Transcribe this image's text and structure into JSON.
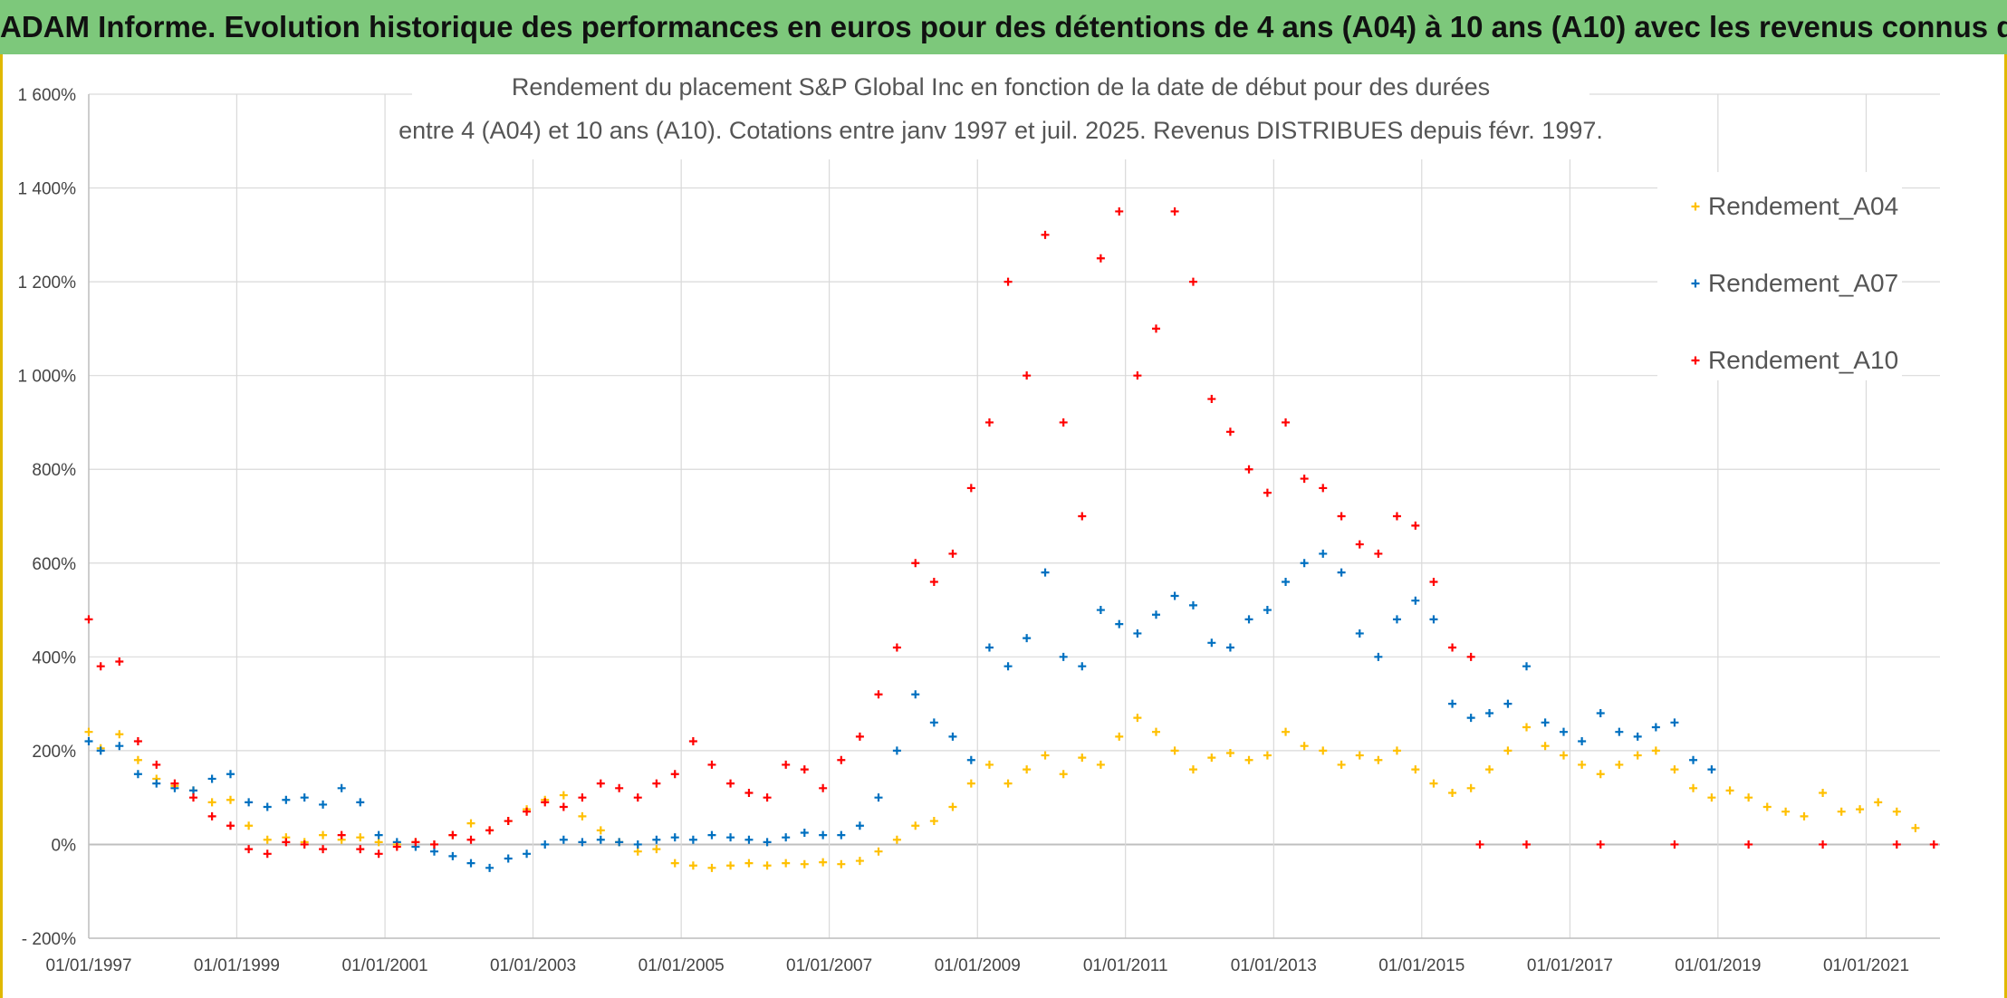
{
  "banner": {
    "title": "ADAM Informe. Evolution historique des performances en euros pour des détentions de 4 ans (A04) à 10 ans (A10) avec les revenus connus distribués"
  },
  "colors": {
    "A04": "#ffc000",
    "A07": "#0070c0",
    "A10": "#ff0000",
    "banner": "#7dc87b",
    "grid": "#d9d9d9"
  },
  "chart_data": {
    "type": "scatter",
    "title": [
      "Rendement du placement S&P Global Inc en fonction de la date de début pour des durées",
      "entre 4 (A04) et 10 ans (A10). Cotations entre janv 1997 et juil. 2025. Revenus DISTRIBUES depuis févr. 1997."
    ],
    "xlabel": "",
    "ylabel": "",
    "x_range": [
      "1997-01-01",
      "2021-12-31"
    ],
    "ylim": [
      -200,
      1600
    ],
    "x_ticks": [
      "01/01/1997",
      "01/01/1999",
      "01/01/2001",
      "01/01/2003",
      "01/01/2005",
      "01/01/2007",
      "01/01/2009",
      "01/01/2011",
      "01/01/2013",
      "01/01/2015",
      "01/01/2017",
      "01/01/2019",
      "01/01/2021"
    ],
    "y_ticks": [
      "- 200%",
      "0%",
      "200%",
      "400%",
      "600%",
      "800%",
      "1 000%",
      "1 200%",
      "1 400%",
      "1 600%"
    ],
    "grid": true,
    "legend_position": "top-right",
    "series": [
      {
        "name": "Rendement_A04",
        "color": "#ffc000",
        "points": [
          [
            "1997-01-01",
            240
          ],
          [
            "1997-03-01",
            205
          ],
          [
            "1997-06-01",
            235
          ],
          [
            "1997-09-01",
            180
          ],
          [
            "1997-12-01",
            140
          ],
          [
            "1998-03-01",
            125
          ],
          [
            "1998-06-01",
            115
          ],
          [
            "1998-09-01",
            90
          ],
          [
            "1998-12-01",
            95
          ],
          [
            "1999-03-01",
            40
          ],
          [
            "1999-06-01",
            10
          ],
          [
            "1999-09-01",
            15
          ],
          [
            "1999-12-01",
            5
          ],
          [
            "2000-03-01",
            20
          ],
          [
            "2000-06-01",
            10
          ],
          [
            "2000-09-01",
            15
          ],
          [
            "2000-12-01",
            5
          ],
          [
            "2001-03-01",
            0
          ],
          [
            "2001-06-01",
            5
          ],
          [
            "2001-09-01",
            0
          ],
          [
            "2001-12-01",
            20
          ],
          [
            "2002-03-01",
            45
          ],
          [
            "2002-06-01",
            30
          ],
          [
            "2002-09-01",
            50
          ],
          [
            "2002-12-01",
            75
          ],
          [
            "2003-03-01",
            95
          ],
          [
            "2003-06-01",
            105
          ],
          [
            "2003-09-01",
            60
          ],
          [
            "2003-12-01",
            30
          ],
          [
            "2004-03-01",
            5
          ],
          [
            "2004-06-01",
            -15
          ],
          [
            "2004-09-01",
            -10
          ],
          [
            "2004-12-01",
            -40
          ],
          [
            "2005-03-01",
            -45
          ],
          [
            "2005-06-01",
            -50
          ],
          [
            "2005-09-01",
            -45
          ],
          [
            "2005-12-01",
            -40
          ],
          [
            "2006-03-01",
            -45
          ],
          [
            "2006-06-01",
            -40
          ],
          [
            "2006-09-01",
            -42
          ],
          [
            "2006-12-01",
            -38
          ],
          [
            "2007-03-01",
            -42
          ],
          [
            "2007-06-01",
            -35
          ],
          [
            "2007-09-01",
            -15
          ],
          [
            "2007-12-01",
            10
          ],
          [
            "2008-03-01",
            40
          ],
          [
            "2008-06-01",
            50
          ],
          [
            "2008-09-01",
            80
          ],
          [
            "2008-12-01",
            130
          ],
          [
            "2009-03-01",
            170
          ],
          [
            "2009-06-01",
            130
          ],
          [
            "2009-09-01",
            160
          ],
          [
            "2009-12-01",
            190
          ],
          [
            "2010-03-01",
            150
          ],
          [
            "2010-06-01",
            185
          ],
          [
            "2010-09-01",
            170
          ],
          [
            "2010-12-01",
            230
          ],
          [
            "2011-03-01",
            270
          ],
          [
            "2011-06-01",
            240
          ],
          [
            "2011-09-01",
            200
          ],
          [
            "2011-12-01",
            160
          ],
          [
            "2012-03-01",
            185
          ],
          [
            "2012-06-01",
            195
          ],
          [
            "2012-09-01",
            180
          ],
          [
            "2012-12-01",
            190
          ],
          [
            "2013-03-01",
            240
          ],
          [
            "2013-06-01",
            210
          ],
          [
            "2013-09-01",
            200
          ],
          [
            "2013-12-01",
            170
          ],
          [
            "2014-03-01",
            190
          ],
          [
            "2014-06-01",
            180
          ],
          [
            "2014-09-01",
            200
          ],
          [
            "2014-12-01",
            160
          ],
          [
            "2015-03-01",
            130
          ],
          [
            "2015-06-01",
            110
          ],
          [
            "2015-09-01",
            120
          ],
          [
            "2015-12-01",
            160
          ],
          [
            "2016-03-01",
            200
          ],
          [
            "2016-06-01",
            250
          ],
          [
            "2016-09-01",
            210
          ],
          [
            "2016-12-01",
            190
          ],
          [
            "2017-03-01",
            170
          ],
          [
            "2017-06-01",
            150
          ],
          [
            "2017-09-01",
            170
          ],
          [
            "2017-12-01",
            190
          ],
          [
            "2018-03-01",
            200
          ],
          [
            "2018-06-01",
            160
          ],
          [
            "2018-09-01",
            120
          ],
          [
            "2018-12-01",
            100
          ],
          [
            "2019-03-01",
            115
          ],
          [
            "2019-06-01",
            100
          ],
          [
            "2019-09-01",
            80
          ],
          [
            "2019-12-01",
            70
          ],
          [
            "2020-03-01",
            60
          ],
          [
            "2020-06-01",
            110
          ],
          [
            "2020-09-01",
            70
          ],
          [
            "2020-12-01",
            75
          ],
          [
            "2021-03-01",
            90
          ],
          [
            "2021-06-01",
            70
          ],
          [
            "2021-09-01",
            35
          ]
        ]
      },
      {
        "name": "Rendement_A07",
        "color": "#0070c0",
        "points": [
          [
            "1997-01-01",
            220
          ],
          [
            "1997-03-01",
            200
          ],
          [
            "1997-06-01",
            210
          ],
          [
            "1997-09-01",
            150
          ],
          [
            "1997-12-01",
            130
          ],
          [
            "1998-03-01",
            120
          ],
          [
            "1998-06-01",
            115
          ],
          [
            "1998-09-01",
            140
          ],
          [
            "1998-12-01",
            150
          ],
          [
            "1999-03-01",
            90
          ],
          [
            "1999-06-01",
            80
          ],
          [
            "1999-09-01",
            95
          ],
          [
            "1999-12-01",
            100
          ],
          [
            "2000-03-01",
            85
          ],
          [
            "2000-06-01",
            120
          ],
          [
            "2000-09-01",
            90
          ],
          [
            "2000-12-01",
            20
          ],
          [
            "2001-03-01",
            5
          ],
          [
            "2001-06-01",
            -5
          ],
          [
            "2001-09-01",
            -15
          ],
          [
            "2001-12-01",
            -25
          ],
          [
            "2002-03-01",
            -40
          ],
          [
            "2002-06-01",
            -50
          ],
          [
            "2002-09-01",
            -30
          ],
          [
            "2002-12-01",
            -20
          ],
          [
            "2003-03-01",
            0
          ],
          [
            "2003-06-01",
            10
          ],
          [
            "2003-09-01",
            5
          ],
          [
            "2003-12-01",
            10
          ],
          [
            "2004-03-01",
            5
          ],
          [
            "2004-06-01",
            0
          ],
          [
            "2004-09-01",
            10
          ],
          [
            "2004-12-01",
            15
          ],
          [
            "2005-03-01",
            10
          ],
          [
            "2005-06-01",
            20
          ],
          [
            "2005-09-01",
            15
          ],
          [
            "2005-12-01",
            10
          ],
          [
            "2006-03-01",
            5
          ],
          [
            "2006-06-01",
            15
          ],
          [
            "2006-09-01",
            25
          ],
          [
            "2006-12-01",
            20
          ],
          [
            "2007-03-01",
            20
          ],
          [
            "2007-06-01",
            40
          ],
          [
            "2007-09-01",
            100
          ],
          [
            "2007-12-01",
            200
          ],
          [
            "2008-03-01",
            320
          ],
          [
            "2008-06-01",
            260
          ],
          [
            "2008-09-01",
            230
          ],
          [
            "2008-12-01",
            180
          ],
          [
            "2009-03-01",
            420
          ],
          [
            "2009-06-01",
            380
          ],
          [
            "2009-09-01",
            440
          ],
          [
            "2009-12-01",
            580
          ],
          [
            "2010-03-01",
            400
          ],
          [
            "2010-06-01",
            380
          ],
          [
            "2010-09-01",
            500
          ],
          [
            "2010-12-01",
            470
          ],
          [
            "2011-03-01",
            450
          ],
          [
            "2011-06-01",
            490
          ],
          [
            "2011-09-01",
            530
          ],
          [
            "2011-12-01",
            510
          ],
          [
            "2012-03-01",
            430
          ],
          [
            "2012-06-01",
            420
          ],
          [
            "2012-09-01",
            480
          ],
          [
            "2012-12-01",
            500
          ],
          [
            "2013-03-01",
            560
          ],
          [
            "2013-06-01",
            600
          ],
          [
            "2013-09-01",
            620
          ],
          [
            "2013-12-01",
            580
          ],
          [
            "2014-03-01",
            450
          ],
          [
            "2014-06-01",
            400
          ],
          [
            "2014-09-01",
            480
          ],
          [
            "2014-12-01",
            520
          ],
          [
            "2015-03-01",
            480
          ],
          [
            "2015-06-01",
            300
          ],
          [
            "2015-09-01",
            270
          ],
          [
            "2015-12-01",
            280
          ],
          [
            "2016-03-01",
            300
          ],
          [
            "2016-06-01",
            380
          ],
          [
            "2016-09-01",
            260
          ],
          [
            "2016-12-01",
            240
          ],
          [
            "2017-03-01",
            220
          ],
          [
            "2017-06-01",
            280
          ],
          [
            "2017-09-01",
            240
          ],
          [
            "2017-12-01",
            230
          ],
          [
            "2018-03-01",
            250
          ],
          [
            "2018-06-01",
            260
          ],
          [
            "2018-09-01",
            180
          ],
          [
            "2018-12-01",
            160
          ]
        ]
      },
      {
        "name": "Rendement_A10",
        "color": "#ff0000",
        "points": [
          [
            "1997-01-01",
            480
          ],
          [
            "1997-03-01",
            380
          ],
          [
            "1997-06-01",
            390
          ],
          [
            "1997-09-01",
            220
          ],
          [
            "1997-12-01",
            170
          ],
          [
            "1998-03-01",
            130
          ],
          [
            "1998-06-01",
            100
          ],
          [
            "1998-09-01",
            60
          ],
          [
            "1998-12-01",
            40
          ],
          [
            "1999-03-01",
            -10
          ],
          [
            "1999-06-01",
            -20
          ],
          [
            "1999-09-01",
            5
          ],
          [
            "1999-12-01",
            0
          ],
          [
            "2000-03-01",
            -10
          ],
          [
            "2000-06-01",
            20
          ],
          [
            "2000-09-01",
            -10
          ],
          [
            "2000-12-01",
            -20
          ],
          [
            "2001-03-01",
            -5
          ],
          [
            "2001-06-01",
            5
          ],
          [
            "2001-09-01",
            0
          ],
          [
            "2001-12-01",
            20
          ],
          [
            "2002-03-01",
            10
          ],
          [
            "2002-06-01",
            30
          ],
          [
            "2002-09-01",
            50
          ],
          [
            "2002-12-01",
            70
          ],
          [
            "2003-03-01",
            90
          ],
          [
            "2003-06-01",
            80
          ],
          [
            "2003-09-01",
            100
          ],
          [
            "2003-12-01",
            130
          ],
          [
            "2004-03-01",
            120
          ],
          [
            "2004-06-01",
            100
          ],
          [
            "2004-09-01",
            130
          ],
          [
            "2004-12-01",
            150
          ],
          [
            "2005-03-01",
            220
          ],
          [
            "2005-06-01",
            170
          ],
          [
            "2005-09-01",
            130
          ],
          [
            "2005-12-01",
            110
          ],
          [
            "2006-03-01",
            100
          ],
          [
            "2006-06-01",
            170
          ],
          [
            "2006-09-01",
            160
          ],
          [
            "2006-12-01",
            120
          ],
          [
            "2007-03-01",
            180
          ],
          [
            "2007-06-01",
            230
          ],
          [
            "2007-09-01",
            320
          ],
          [
            "2007-12-01",
            420
          ],
          [
            "2008-03-01",
            600
          ],
          [
            "2008-06-01",
            560
          ],
          [
            "2008-09-01",
            620
          ],
          [
            "2008-12-01",
            760
          ],
          [
            "2009-03-01",
            900
          ],
          [
            "2009-06-01",
            1200
          ],
          [
            "2009-09-01",
            1000
          ],
          [
            "2009-12-01",
            1300
          ],
          [
            "2010-03-01",
            900
          ],
          [
            "2010-06-01",
            700
          ],
          [
            "2010-09-01",
            1250
          ],
          [
            "2010-12-01",
            1350
          ],
          [
            "2011-03-01",
            1000
          ],
          [
            "2011-06-01",
            1100
          ],
          [
            "2011-09-01",
            1350
          ],
          [
            "2011-12-01",
            1200
          ],
          [
            "2012-03-01",
            950
          ],
          [
            "2012-06-01",
            880
          ],
          [
            "2012-09-01",
            800
          ],
          [
            "2012-12-01",
            750
          ],
          [
            "2013-03-01",
            900
          ],
          [
            "2013-06-01",
            780
          ],
          [
            "2013-09-01",
            760
          ],
          [
            "2013-12-01",
            700
          ],
          [
            "2014-03-01",
            640
          ],
          [
            "2014-06-01",
            620
          ],
          [
            "2014-09-01",
            700
          ],
          [
            "2014-12-01",
            680
          ],
          [
            "2015-03-01",
            560
          ],
          [
            "2015-06-01",
            420
          ],
          [
            "2015-09-01",
            400
          ],
          [
            "2015-10-15",
            0
          ],
          [
            "2016-06-01",
            0
          ],
          [
            "2017-06-01",
            0
          ],
          [
            "2018-06-01",
            0
          ],
          [
            "2019-06-01",
            0
          ],
          [
            "2020-06-01",
            0
          ],
          [
            "2021-06-01",
            0
          ],
          [
            "2021-12-01",
            0
          ]
        ]
      }
    ]
  }
}
